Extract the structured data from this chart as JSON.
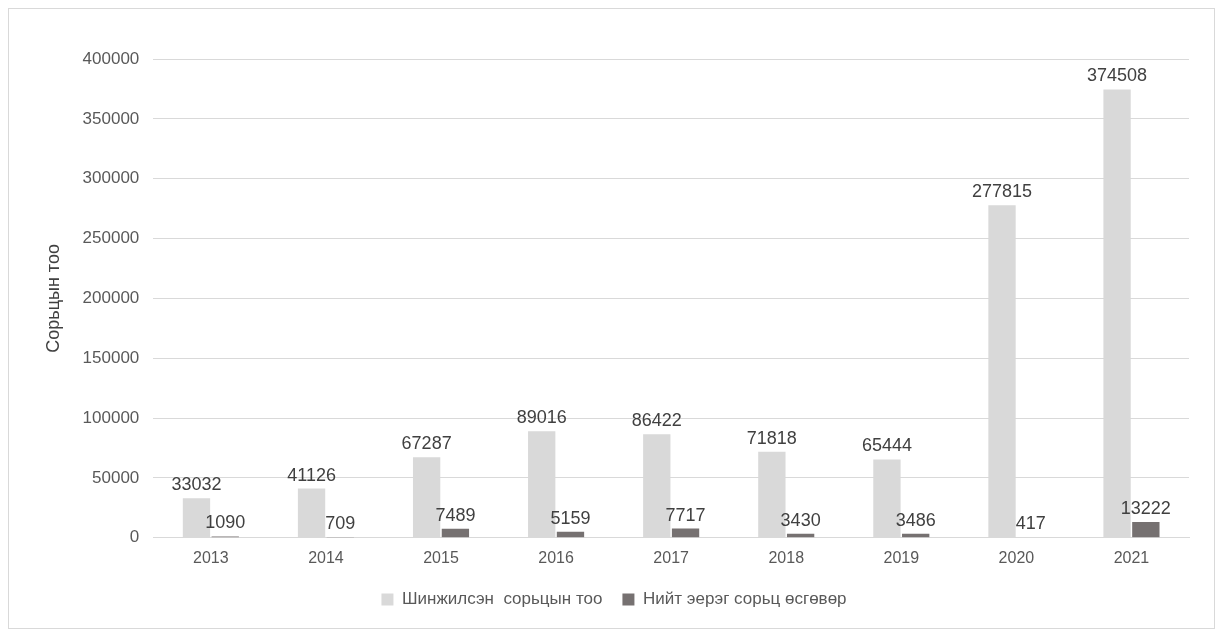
{
  "chart_data": {
    "type": "bar",
    "ylabel": "Сорьцын тоо",
    "categories": [
      "2013",
      "2014",
      "2015",
      "2016",
      "2017",
      "2018",
      "2019",
      "2020",
      "2021"
    ],
    "series": [
      {
        "name": "Шинжилсэн  сорьцын тоо",
        "color": "#d9d9d9",
        "values": [
          33032,
          41126,
          67287,
          89016,
          86422,
          71818,
          65444,
          277815,
          374508
        ]
      },
      {
        "name": "Нийт эерэг сорьц өсгөвөр",
        "color": "#767171",
        "values": [
          1090,
          709,
          7489,
          5159,
          7717,
          3430,
          3486,
          417,
          13222
        ]
      }
    ],
    "ylim": [
      0,
      400000
    ],
    "yticks": [
      0,
      50000,
      100000,
      150000,
      200000,
      250000,
      300000,
      350000,
      400000
    ],
    "grid": "y",
    "legend": "bottom",
    "data_labels": true
  }
}
